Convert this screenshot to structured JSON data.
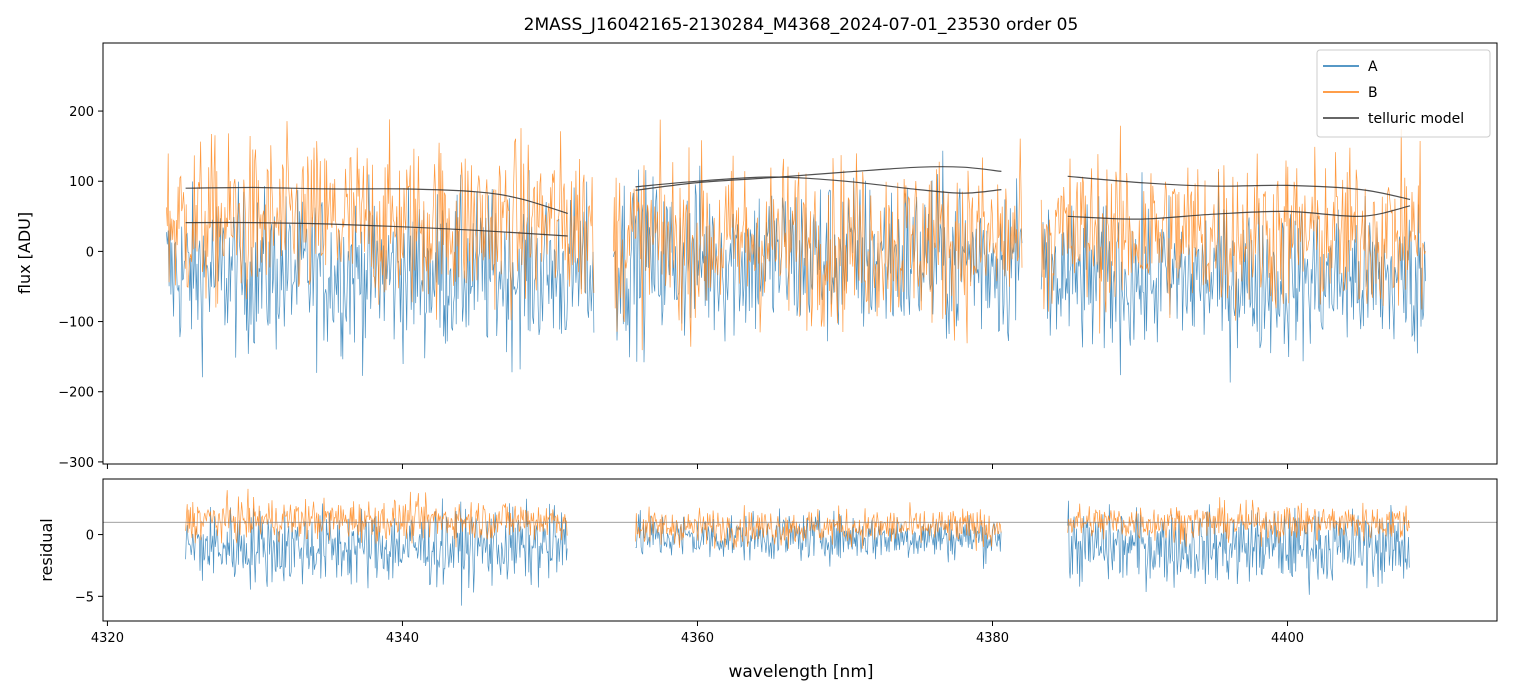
{
  "colors": {
    "series_a": "#1f77b4",
    "series_b": "#ff7f0e",
    "telluric": "#333333",
    "axis": "#000000",
    "refline": "#808080"
  },
  "chart_data": {
    "type": "line",
    "title": "2MASS_J16042165-2130284_M4368_2024-07-01_23530  order 05",
    "xlabel": "wavelength [nm]",
    "xlim": [
      4319.7,
      4414.2
    ],
    "x_ticks": [
      4320,
      4340,
      4360,
      4380,
      4400
    ],
    "x_tick_labels": [
      "4320",
      "4340",
      "4360",
      "4380",
      "4400"
    ],
    "legend": {
      "location": "upper right",
      "entries": [
        {
          "label": "A",
          "color": "#1f77b4"
        },
        {
          "label": "B",
          "color": "#ff7f0e"
        },
        {
          "label": "telluric model",
          "color": "#333333"
        }
      ]
    },
    "panels": [
      {
        "name": "flux",
        "ylabel": "flux [ADU]",
        "ylim": [
          -303,
          297
        ],
        "y_ticks": [
          -300,
          -200,
          -100,
          0,
          100,
          200
        ],
        "y_tick_labels": [
          "−300",
          "−200",
          "−100",
          "0",
          "100",
          "200"
        ],
        "segments": [
          {
            "x_range": [
              4324.0,
              4353.0
            ],
            "A": {
              "center": -30,
              "spread": 115
            },
            "B": {
              "center": 40,
              "spread": 120
            },
            "telluric_curves": [
              {
                "x": [
                  4325.3,
                  4330,
                  4335,
                  4340,
                  4345,
                  4348,
                  4351.2
                ],
                "y": [
                  90,
                  91,
                  89,
                  89,
                  85,
                  75,
                  54
                ]
              },
              {
                "x": [
                  4325.3,
                  4330,
                  4335,
                  4340,
                  4345,
                  4351.2
                ],
                "y": [
                  41,
                  41,
                  39,
                  35,
                  30,
                  22
                ]
              }
            ]
          },
          {
            "x_range": [
              4354.3,
              4382.0
            ],
            "A": {
              "center": -10,
              "spread": 120
            },
            "B": {
              "center": 15,
              "spread": 120
            },
            "telluric_curves": [
              {
                "x": [
                  4355.8,
                  4360,
                  4365,
                  4370,
                  4375,
                  4378,
                  4380.6
                ],
                "y": [
                  87,
                  98,
                  105,
                  113,
                  120,
                  120,
                  114
                ]
              },
              {
                "x": [
                  4355.8,
                  4360,
                  4365,
                  4370,
                  4375,
                  4378,
                  4380.6
                ],
                "y": [
                  92,
                  100,
                  106,
                  100,
                  88,
                  83,
                  88
                ]
              }
            ]
          },
          {
            "x_range": [
              4383.3,
              4409.4
            ],
            "A": {
              "center": -40,
              "spread": 110
            },
            "B": {
              "center": 25,
              "spread": 115
            },
            "telluric_curves": [
              {
                "x": [
                  4385.1,
                  4390,
                  4395,
                  4400,
                  4405,
                  4408.3
                ],
                "y": [
                  107,
                  98,
                  93,
                  94,
                  88,
                  74
                ]
              },
              {
                "x": [
                  4385.1,
                  4390,
                  4395,
                  4400,
                  4405,
                  4408.3
                ],
                "y": [
                  50,
                  46,
                  53,
                  57,
                  50,
                  65
                ]
              }
            ]
          }
        ]
      },
      {
        "name": "residual",
        "ylabel": "residual",
        "ylim": [
          -7.0,
          4.5
        ],
        "y_ticks": [
          -5,
          0
        ],
        "y_tick_labels": [
          "−5",
          "0"
        ],
        "reference_line_y": 1.0,
        "segments": [
          {
            "x_range": [
              4325.3,
              4351.2
            ],
            "A": {
              "center": -1.0,
              "spread": 3.2
            },
            "B": {
              "center": 1.2,
              "spread": 1.7
            }
          },
          {
            "x_range": [
              4355.8,
              4380.6
            ],
            "A": {
              "center": -0.2,
              "spread": 1.9
            },
            "B": {
              "center": 0.6,
              "spread": 1.5
            }
          },
          {
            "x_range": [
              4385.1,
              4408.3
            ],
            "A": {
              "center": -1.0,
              "spread": 3.0
            },
            "B": {
              "center": 1.0,
              "spread": 1.5
            }
          }
        ]
      }
    ]
  }
}
